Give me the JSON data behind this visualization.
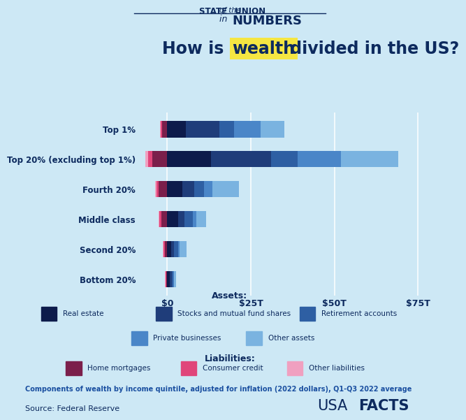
{
  "categories": [
    "Top 1%",
    "Top 20% (excluding top 1%)",
    "Fourth 20%",
    "Middle class",
    "Second 20%",
    "Bottom 20%"
  ],
  "background_color": "#cde8f5",
  "assets": {
    "real_estate": [
      5.5,
      13.0,
      4.5,
      3.2,
      1.2,
      0.8
    ],
    "stocks_mutual": [
      10.0,
      18.0,
      3.5,
      2.0,
      0.8,
      0.5
    ],
    "retirement": [
      4.5,
      8.0,
      3.0,
      2.5,
      1.2,
      0.5
    ],
    "private_biz": [
      8.0,
      13.0,
      2.5,
      1.0,
      0.5,
      0.2
    ],
    "other_assets": [
      7.0,
      17.0,
      8.0,
      3.0,
      2.0,
      0.7
    ]
  },
  "liabilities": {
    "home_mortgages": [
      -1.5,
      -4.5,
      -2.5,
      -1.8,
      -0.7,
      -0.3
    ],
    "consumer_credit": [
      -0.4,
      -1.2,
      -0.8,
      -0.5,
      -0.4,
      -0.2
    ],
    "other_liabilities": [
      -0.3,
      -0.8,
      -0.4,
      -0.3,
      -0.2,
      -0.15
    ]
  },
  "asset_colors": {
    "real_estate": "#0d1b4b",
    "stocks_mutual": "#1f3d7a",
    "retirement": "#2e5fa3",
    "private_biz": "#4a86c8",
    "other_assets": "#7ab3e0"
  },
  "liability_colors": {
    "home_mortgages": "#7b1f4b",
    "consumer_credit": "#e0457a",
    "other_liabilities": "#f0a0c0"
  },
  "asset_labels": [
    "Real estate",
    "Stocks and mutual fund shares",
    "Retirement accounts",
    "Private businesses",
    "Other assets"
  ],
  "liability_labels": [
    "Home mortgages",
    "Consumer credit",
    "Other liabilities"
  ],
  "xlim": [
    -8,
    80
  ],
  "xticks": [
    0,
    25,
    50,
    75
  ],
  "xticklabels": [
    "$0",
    "$25T",
    "$50T",
    "$75T"
  ],
  "header_line1_left": "STATE ",
  "header_line1_mid": "of the",
  "header_line1_right": " UNION",
  "header_line2_pre": "in ",
  "header_line2_main": "NUMBERS",
  "title_pre": "How is ",
  "title_highlight": "wealth",
  "title_post": " divided in the US?",
  "highlight_color": "#f5e642",
  "footer_text": "Components of wealth by income quintile, adjusted for inflation (2022 dollars), Q1-Q3 2022 average",
  "source_text": "Source: Federal Reserve",
  "usa_text": "USA",
  "facts_text": "FACTS",
  "text_color": "#0d2a5e"
}
